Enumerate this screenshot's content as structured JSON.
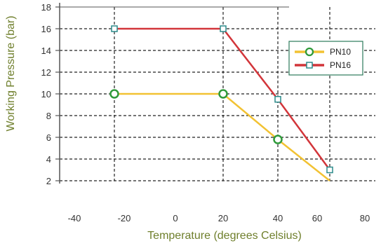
{
  "chart_data": {
    "type": "line",
    "title": "",
    "xlabel": "Temperature (degrees Celsius)",
    "ylabel": "Working Pressure (bar)",
    "xlim": [
      -40,
      80
    ],
    "ylim": [
      2,
      18
    ],
    "x_ticks": [
      -40,
      -20,
      0,
      20,
      40,
      60,
      80
    ],
    "x_tick_labels": [
      "-40",
      "-20",
      "0",
      "20",
      "40",
      "60",
      "80"
    ],
    "y_ticks": [
      2,
      4,
      6,
      8,
      10,
      12,
      14,
      16,
      18
    ],
    "y_tick_labels": [
      "2",
      "4",
      "6",
      "8",
      "10",
      "12",
      "14",
      "16",
      "18"
    ],
    "grid": true,
    "legend_position": "top-right",
    "series": [
      {
        "name": "PN10",
        "color": "#f2c233",
        "marker": "circle",
        "x": [
          -20,
          20,
          40,
          60
        ],
        "y": [
          10,
          10,
          5.8,
          2
        ],
        "marked": [
          true,
          true,
          true,
          false
        ]
      },
      {
        "name": "PN16",
        "color": "#d2353a",
        "marker": "square",
        "x": [
          -20,
          20,
          40,
          60
        ],
        "y": [
          16,
          16,
          9.5,
          3
        ],
        "marked": [
          true,
          true,
          true,
          true
        ]
      }
    ]
  }
}
